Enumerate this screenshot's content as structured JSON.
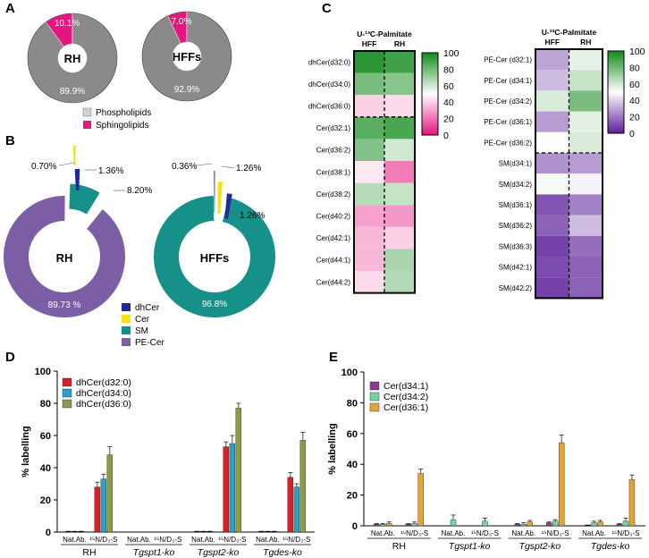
{
  "panels": {
    "A": {
      "letter": "A",
      "donuts": [
        {
          "center_label": "RH",
          "phospholipids_pct": 89.9,
          "sphingolipids_pct": 10.1,
          "phospholipids_label": "89.9%",
          "sphingolipids_label": "10.1%"
        },
        {
          "center_label": "HFFs",
          "phospholipids_pct": 92.9,
          "sphingolipids_pct": 7.0,
          "phospholipids_label": "92.9%",
          "sphingolipids_label": "7.0%"
        }
      ],
      "legend": [
        {
          "label": "Phospholipids",
          "color": "#d0d0d0"
        },
        {
          "label": "Sphingolipids",
          "color": "#e6157f"
        }
      ],
      "colors": {
        "phospholipids": "#8a8a8a",
        "sphingolipids": "#e6157f"
      }
    },
    "B": {
      "letter": "B",
      "donuts": [
        {
          "center_label": "RH",
          "slices": [
            {
              "name": "PE-Cer",
              "value": 89.73,
              "label": "89.73 %"
            },
            {
              "name": "SM",
              "value": 8.2,
              "label": "8.20%"
            },
            {
              "name": "dhCer",
              "value": 1.36,
              "label": "1.36%"
            },
            {
              "name": "Cer",
              "value": 0.7,
              "label": "0.70%"
            }
          ]
        },
        {
          "center_label": "HFFs",
          "slices": [
            {
              "name": "SM",
              "value": 96.8,
              "label": "96.8%"
            },
            {
              "name": "dhCer",
              "value": 1.26,
              "label": "1.26%"
            },
            {
              "name": "Cer",
              "value": 1.26,
              "label": "1.26%"
            },
            {
              "name": "PE-Cer",
              "value": 0.36,
              "label": "0.36%"
            }
          ]
        }
      ],
      "legend": [
        {
          "label": "dhCer",
          "color": "#1f2a99"
        },
        {
          "label": "Cer",
          "color": "#f2e21a"
        },
        {
          "label": "SM",
          "color": "#15918a"
        },
        {
          "label": "PE-Cer",
          "color": "#7b5ea6"
        }
      ]
    },
    "C": {
      "letter": "C",
      "title_left": "U-¹³C-Palmitate",
      "title_right": "U-¹³C-Palmitate",
      "cols": [
        "HFF",
        "RH"
      ],
      "left_scale": {
        "ticks": [
          "100",
          "80",
          "60",
          "40",
          "20",
          "0"
        ],
        "colors": [
          "#118a1a",
          "#ffffff",
          "#e6157f"
        ]
      },
      "right_scale": {
        "ticks": [
          "100",
          "80",
          "60",
          "40",
          "20",
          "0"
        ],
        "colors": [
          "#118a1a",
          "#ffffff",
          "#5a1e99"
        ]
      },
      "left_rows": [
        {
          "label": "dhCer(d32:0)",
          "values": [
            95,
            90
          ]
        },
        {
          "label": "dhCer(d34:0)",
          "values": [
            78,
            75
          ]
        },
        {
          "label": "dhCer(d36:0)",
          "values": [
            40,
            42
          ]
        },
        {
          "label": "Cer(d32:1)",
          "values": [
            85,
            88
          ]
        },
        {
          "label": "Cer(d36:2)",
          "values": [
            76,
            60
          ]
        },
        {
          "label": "Cer(d38:1)",
          "values": [
            45,
            22
          ]
        },
        {
          "label": "Cer(d38:2)",
          "values": [
            65,
            62
          ]
        },
        {
          "label": "Cer(d40:2)",
          "values": [
            30,
            28
          ]
        },
        {
          "label": "Cer(d42:1)",
          "values": [
            35,
            40
          ]
        },
        {
          "label": "Cer(d44:1)",
          "values": [
            35,
            68
          ]
        },
        {
          "label": "Cer(d44:2)",
          "values": [
            42,
            66
          ]
        }
      ],
      "right_rows": [
        {
          "label": "PE-Cer (d32:1)",
          "values": [
            30,
            55
          ]
        },
        {
          "label": "PE-Cer (d34:1)",
          "values": [
            35,
            62
          ]
        },
        {
          "label": "PE-Cer (d34:2)",
          "values": [
            58,
            78
          ]
        },
        {
          "label": "PE-Cer (d36:1)",
          "values": [
            28,
            56
          ]
        },
        {
          "label": "PE-Cer (d36:2)",
          "values": [
            50,
            58
          ]
        },
        {
          "label": "SM(d34:1)",
          "values": [
            26,
            28
          ]
        },
        {
          "label": "SM(d34:2)",
          "values": [
            52,
            47
          ]
        },
        {
          "label": "SM(d36:1)",
          "values": [
            12,
            22
          ]
        },
        {
          "label": "SM(d36:2)",
          "values": [
            15,
            35
          ]
        },
        {
          "label": "SM(d36:3)",
          "values": [
            8,
            18
          ]
        },
        {
          "label": "SM(d42:1)",
          "values": [
            10,
            15
          ]
        },
        {
          "label": "SM(d42:2)",
          "values": [
            8,
            15
          ]
        }
      ]
    },
    "D": {
      "letter": "D"
    },
    "E": {
      "letter": "E"
    }
  },
  "chart_data": [
    {
      "type": "bar",
      "panel": "D",
      "ylabel": "% labelling",
      "ylim": [
        0,
        100
      ],
      "yticks": [
        "0",
        "20",
        "40",
        "60",
        "80",
        "100"
      ],
      "groups": [
        "RH",
        "Tgspt1-ko",
        "Tgspt2-ko",
        "Tgdes-ko"
      ],
      "conditions": [
        "Nat.Ab.",
        "¹⁵N/D₃-S"
      ],
      "series": [
        {
          "name": "dhCer(d32:0)",
          "color": "#d62027",
          "values": [
            [
              0,
              28
            ],
            [
              0,
              0
            ],
            [
              0,
              53
            ],
            [
              0,
              34
            ]
          ],
          "errors": [
            [
              0,
              3
            ],
            [
              0,
              0
            ],
            [
              0,
              3
            ],
            [
              0,
              3
            ]
          ]
        },
        {
          "name": "dhCer(d34:0)",
          "color": "#2aa0c8",
          "values": [
            [
              0,
              33
            ],
            [
              0,
              0
            ],
            [
              0,
              55
            ],
            [
              0,
              28
            ]
          ],
          "errors": [
            [
              0,
              3
            ],
            [
              0,
              0
            ],
            [
              0,
              5
            ],
            [
              0,
              2
            ]
          ]
        },
        {
          "name": "dhCer(d36:0)",
          "color": "#8c9a4a",
          "values": [
            [
              0,
              48
            ],
            [
              0,
              0
            ],
            [
              0,
              77
            ],
            [
              0,
              57
            ]
          ],
          "errors": [
            [
              0,
              5
            ],
            [
              0,
              0
            ],
            [
              0,
              3
            ],
            [
              0,
              5
            ]
          ]
        }
      ]
    },
    {
      "type": "bar",
      "panel": "E",
      "ylabel": "% labelling",
      "ylim": [
        0,
        100
      ],
      "yticks": [
        "0",
        "20",
        "40",
        "60",
        "80",
        "100"
      ],
      "groups": [
        "RH",
        "Tgspt1-ko",
        "Tgspt2-ko",
        "Tgdes-ko"
      ],
      "conditions": [
        "Nat.Ab.",
        "¹⁵N/D₃-S"
      ],
      "series": [
        {
          "name": "Cer(d34:1)",
          "color": "#8a3b95",
          "values": [
            [
              1,
              1
            ],
            [
              0,
              0
            ],
            [
              1,
              2
            ],
            [
              0,
              1
            ]
          ],
          "errors": [
            [
              0.5,
              0.5
            ],
            [
              0,
              0
            ],
            [
              0.5,
              0.5
            ],
            [
              0,
              0.5
            ]
          ]
        },
        {
          "name": "Cer(d34:2)",
          "color": "#6fd79e",
          "values": [
            [
              1,
              1.5
            ],
            [
              4,
              3
            ],
            [
              1,
              3
            ],
            [
              2,
              3
            ]
          ],
          "errors": [
            [
              0.5,
              1
            ],
            [
              3,
              2
            ],
            [
              1,
              1
            ],
            [
              1,
              2
            ]
          ]
        },
        {
          "name": "Cer(d36:1)",
          "color": "#e0a43a",
          "values": [
            [
              1.5,
              34
            ],
            [
              0,
              0
            ],
            [
              2.5,
              54
            ],
            [
              2.5,
              30
            ]
          ],
          "errors": [
            [
              1,
              3
            ],
            [
              0,
              0
            ],
            [
              1,
              5
            ],
            [
              1,
              3
            ]
          ]
        }
      ]
    }
  ]
}
